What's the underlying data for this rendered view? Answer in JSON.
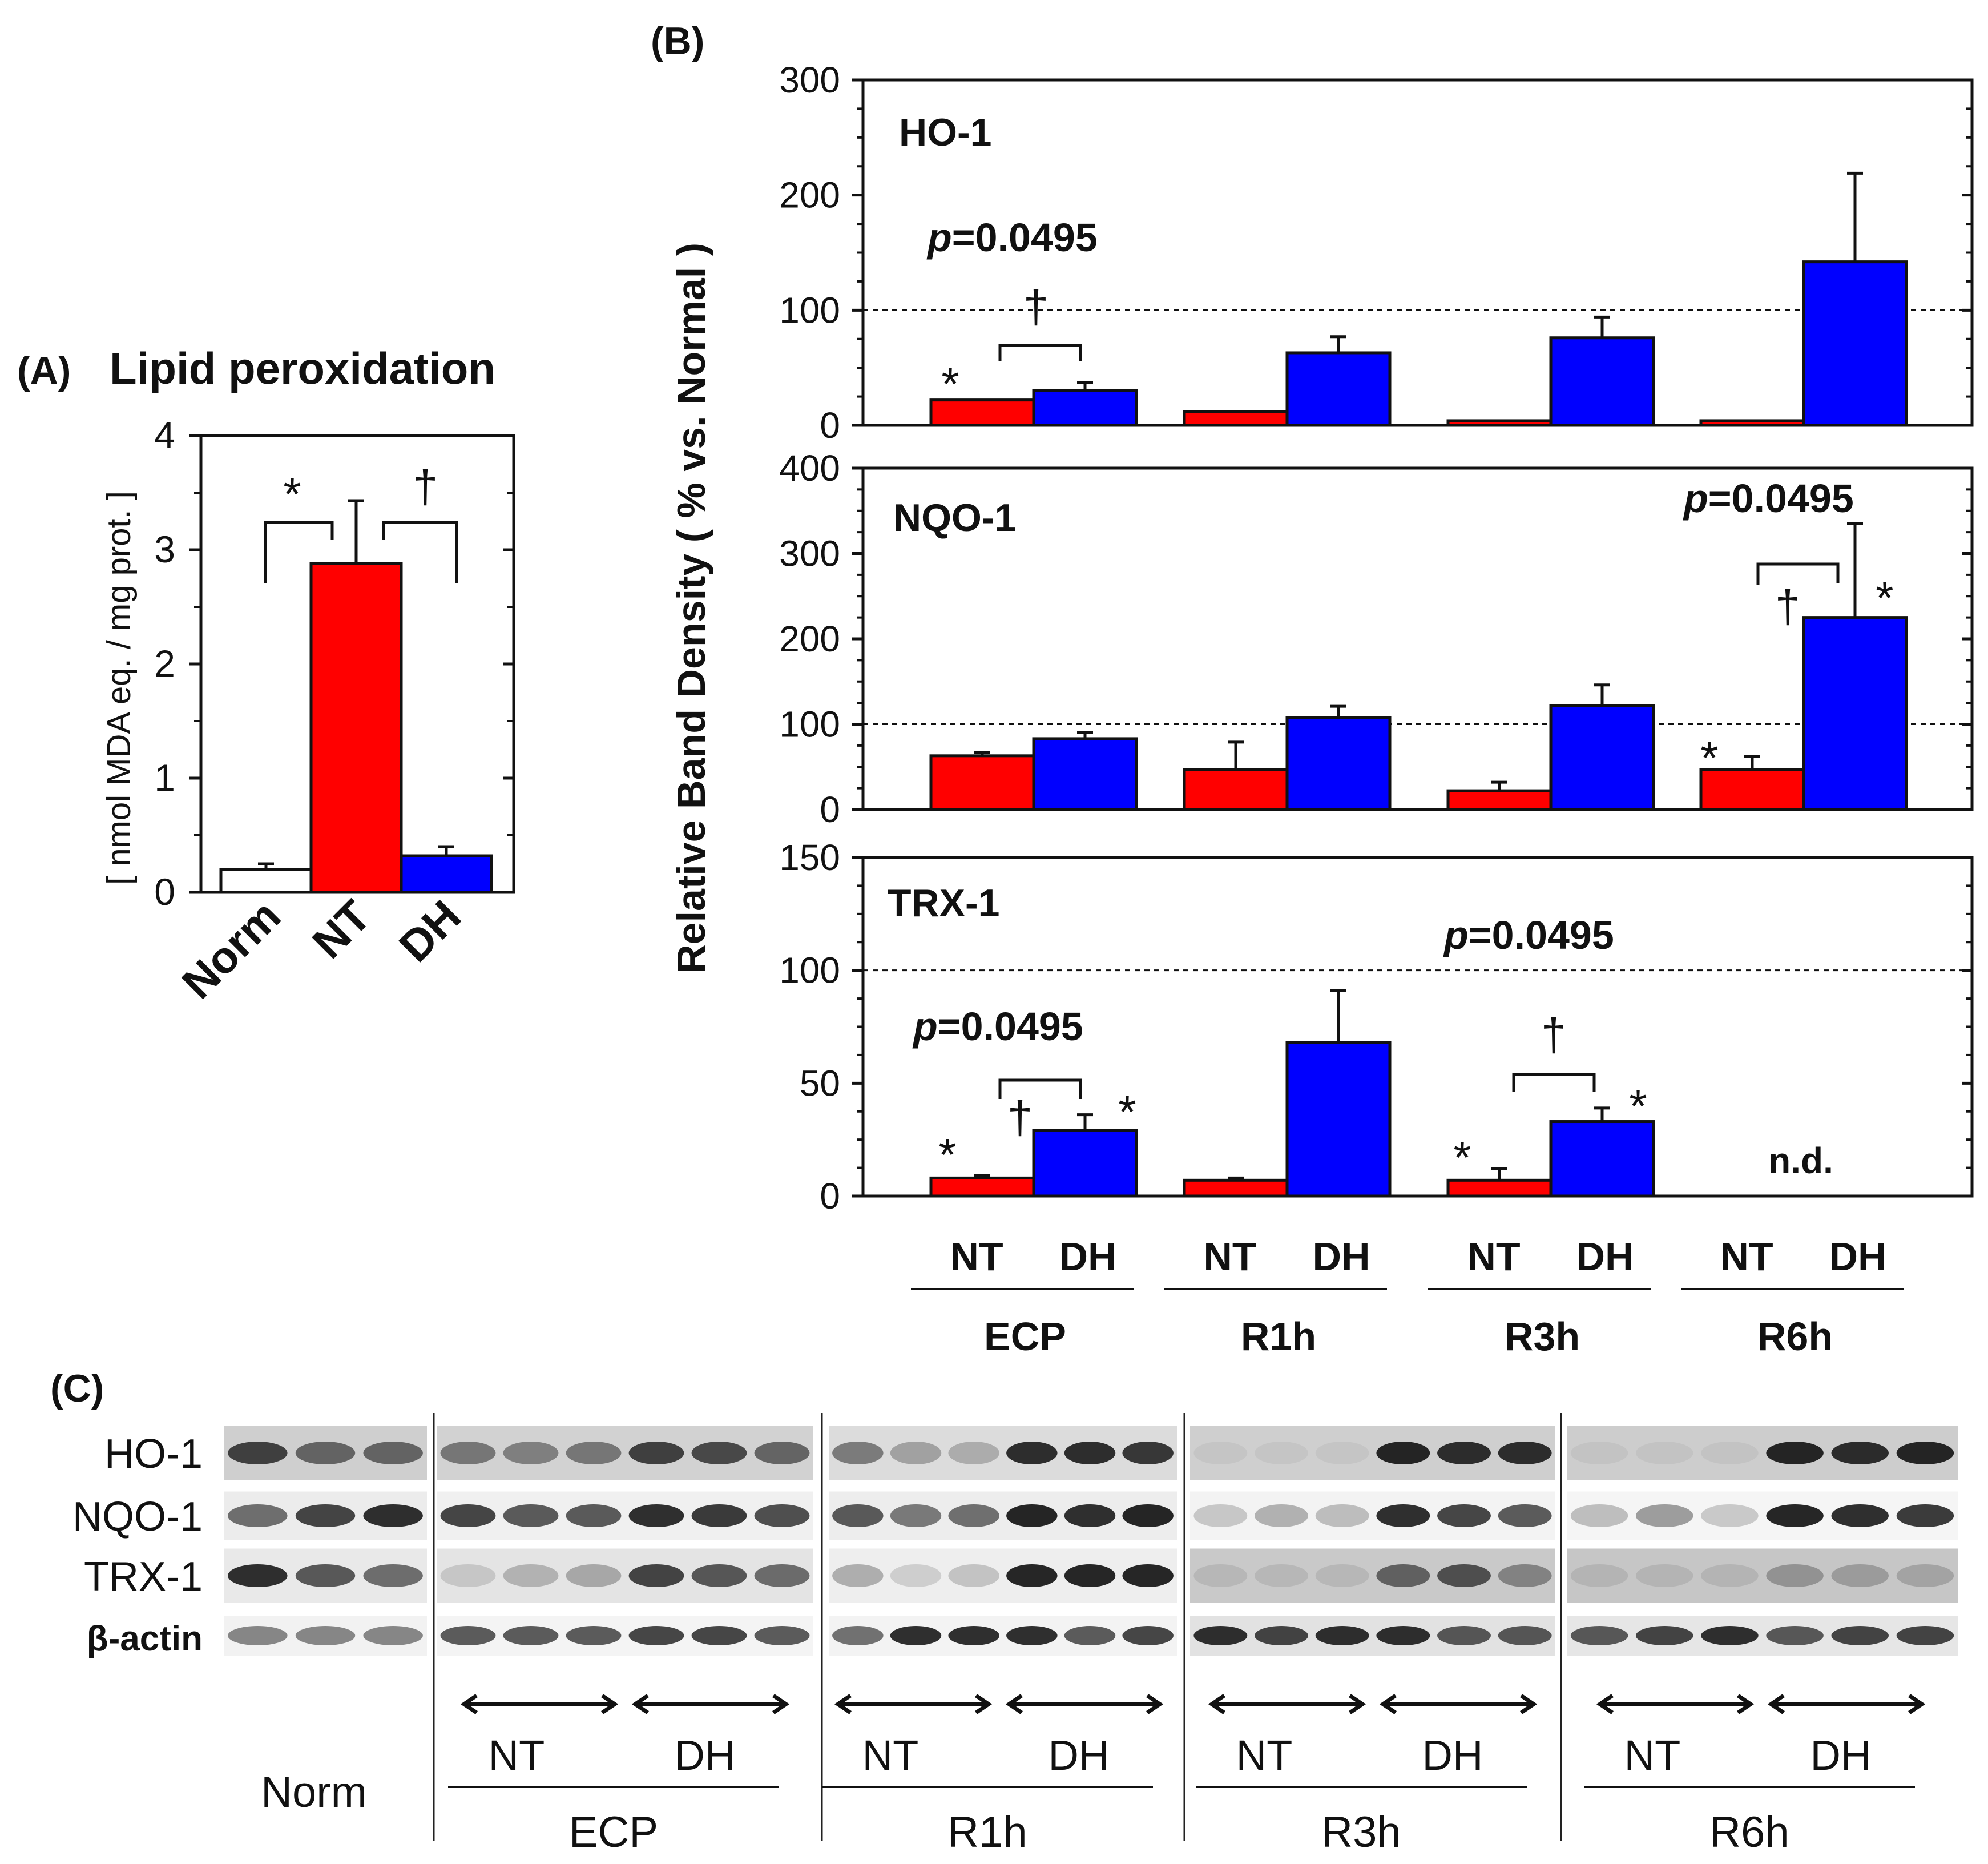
{
  "chart_data": [
    {
      "panel": "A",
      "panel_label": "(A)",
      "type": "bar",
      "title": "Lipid peroxidation",
      "ylabel": "[ nmol MDA eq. / mg prot. ]",
      "ylim": [
        0,
        4
      ],
      "yticks": [
        "0",
        "1",
        "2",
        "3",
        "4"
      ],
      "categories": [
        "Norm",
        "NT",
        "DH"
      ],
      "values": [
        0.2,
        2.88,
        0.32
      ],
      "errors": [
        0.05,
        0.55,
        0.08
      ],
      "colors": [
        "#ffffff",
        "#ff0000",
        "#0000ff"
      ],
      "annotations": [
        "*",
        "†"
      ]
    },
    {
      "panel": "B",
      "panel_label": "(B)",
      "type": "bar",
      "ylabel": "Relative Band Density ( % vs. Normal )",
      "groups": [
        "ECP",
        "R1h",
        "R3h",
        "R6h"
      ],
      "bar_labels": [
        "NT",
        "DH"
      ],
      "reference_line": 100,
      "subplots": [
        {
          "name": "HO-1",
          "ylim": [
            0,
            300
          ],
          "yticks": [
            "0",
            "100",
            "200",
            "300"
          ],
          "series": [
            {
              "name": "NT",
              "color": "#ff0000",
              "values": [
                22,
                12,
                4,
                4
              ],
              "errors": [
                0,
                0,
                0,
                0
              ]
            },
            {
              "name": "DH",
              "color": "#0000ff",
              "values": [
                30,
                63,
                76,
                142
              ],
              "errors": [
                7,
                14,
                18,
                77
              ]
            }
          ],
          "annotations": {
            "p": "p",
            "p_value": "=0.0495",
            "star": "*",
            "dagger": "†"
          }
        },
        {
          "name": "NQO-1",
          "ylim": [
            0,
            400
          ],
          "yticks": [
            "0",
            "100",
            "200",
            "300",
            "400"
          ],
          "series": [
            {
              "name": "NT",
              "color": "#ff0000",
              "values": [
                63,
                47,
                22,
                47
              ],
              "errors": [
                4,
                32,
                10,
                15
              ]
            },
            {
              "name": "DH",
              "color": "#0000ff",
              "values": [
                83,
                108,
                122,
                225
              ],
              "errors": [
                7,
                13,
                24,
                110
              ]
            }
          ],
          "annotations": {
            "p": "p",
            "p_value": "=0.0495",
            "star_nt": "*",
            "star_dh": "*",
            "dagger": "†"
          }
        },
        {
          "name": "TRX-1",
          "ylim": [
            0,
            150
          ],
          "yticks": [
            "0",
            "50",
            "100",
            "150"
          ],
          "series": [
            {
              "name": "NT",
              "color": "#ff0000",
              "values": [
                8,
                7,
                7,
                null
              ],
              "errors": [
                1,
                1,
                5,
                null
              ]
            },
            {
              "name": "DH",
              "color": "#0000ff",
              "values": [
                29,
                68,
                33,
                null
              ],
              "errors": [
                7,
                23,
                6,
                null
              ]
            }
          ],
          "not_detected": "n.d.",
          "annotations": {
            "p": "p",
            "p_value": "=0.0495",
            "star": "*",
            "dagger": "†"
          }
        }
      ]
    }
  ],
  "blot": {
    "panel_label": "(C)",
    "rows": [
      "HO-1",
      "NQO-1",
      "TRX-1",
      "β-actin"
    ],
    "norm_label": "Norm",
    "nt_label": "NT",
    "dh_label": "DH",
    "groups": [
      "ECP",
      "R1h",
      "R3h",
      "R6h"
    ]
  }
}
